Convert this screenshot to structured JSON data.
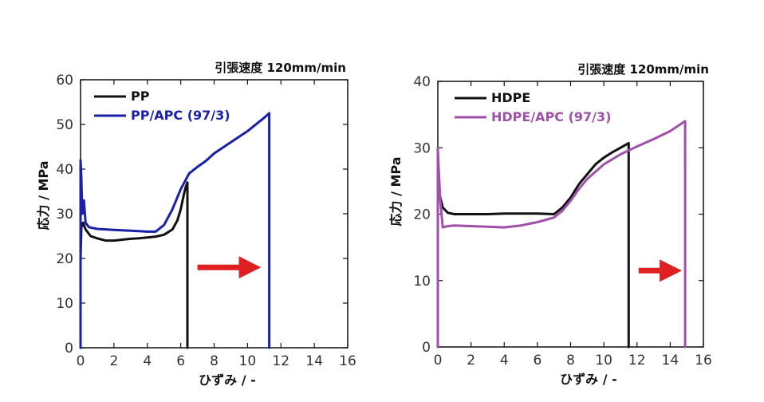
{
  "chart_data": [
    {
      "type": "line",
      "annotation": "引張速度 120mm/min",
      "xlabel": "ひずみ / -",
      "ylabel": "応力 / MPa",
      "xlim": [
        0,
        16
      ],
      "ylim": [
        0,
        60
      ],
      "xticks": [
        "0",
        "2",
        "4",
        "6",
        "8",
        "10",
        "12",
        "14",
        "16"
      ],
      "yticks": [
        "0",
        "10",
        "20",
        "30",
        "40",
        "50",
        "60"
      ],
      "legend_position": "top-left",
      "arrow": {
        "from": [
          7,
          18
        ],
        "to": [
          11,
          18
        ],
        "color": "#e02020"
      },
      "series": [
        {
          "name": "PP",
          "color": "#111111",
          "x": [
            0,
            0,
            0.05,
            0.15,
            0.3,
            0.6,
            1.0,
            1.5,
            2.0,
            2.5,
            3.0,
            3.5,
            4.0,
            4.5,
            5.0,
            5.5,
            5.8,
            6.0,
            6.2,
            6.3,
            6.4,
            6.4,
            6.4
          ],
          "y": [
            0,
            20,
            27,
            28,
            26.5,
            25,
            24.5,
            24,
            24,
            24.2,
            24.4,
            24.5,
            24.7,
            24.9,
            25.3,
            26.5,
            28.5,
            31,
            34.5,
            36,
            37,
            20,
            0
          ]
        },
        {
          "name": "PP/APC (97/3)",
          "color": "#1a1fa8",
          "x": [
            0,
            0,
            0.05,
            0.1,
            0.2,
            0.3,
            0.5,
            1.0,
            2.0,
            3.0,
            4.0,
            4.5,
            5.0,
            5.5,
            6.0,
            6.5,
            7.0,
            7.5,
            8.0,
            9.0,
            10.0,
            11.0,
            11.3,
            11.3,
            11.3
          ],
          "y": [
            0,
            42,
            38,
            30,
            33,
            28,
            27,
            26.6,
            26.4,
            26.2,
            26,
            26,
            27.5,
            31,
            35.5,
            39,
            40.5,
            41.8,
            43.5,
            46,
            48.5,
            51.5,
            52.5,
            25,
            0
          ]
        }
      ]
    },
    {
      "type": "line",
      "annotation": "引張速度 120mm/min",
      "xlabel": "ひずみ / -",
      "ylabel": "応力 / MPa",
      "xlim": [
        0,
        16
      ],
      "ylim": [
        0,
        40
      ],
      "xticks": [
        "0",
        "2",
        "4",
        "6",
        "8",
        "10",
        "12",
        "14",
        "16"
      ],
      "yticks": [
        "0",
        "10",
        "20",
        "30",
        "40"
      ],
      "legend_position": "top-left",
      "arrow": {
        "from": [
          12.1,
          11.5
        ],
        "to": [
          14.9,
          11.5
        ],
        "color": "#e02020"
      },
      "series": [
        {
          "name": "HDPE",
          "color": "#111111",
          "x": [
            0,
            0,
            0.1,
            0.3,
            0.6,
            1.0,
            2.0,
            3.0,
            4.0,
            5.0,
            6.0,
            7.0,
            7.5,
            8.0,
            8.5,
            9.0,
            9.5,
            10.0,
            10.5,
            11.0,
            11.5,
            11.5,
            11.5
          ],
          "y": [
            0,
            27,
            23,
            21,
            20.2,
            20,
            20,
            20,
            20.1,
            20.1,
            20.1,
            20,
            21,
            22.5,
            24.5,
            26,
            27.5,
            28.5,
            29.3,
            30,
            30.7,
            10,
            0
          ]
        },
        {
          "name": "HDPE/APC (97/3)",
          "color": "#a050a8",
          "x": [
            0,
            0,
            0.05,
            0.15,
            0.3,
            0.6,
            1.0,
            2.0,
            3.0,
            4.0,
            5.0,
            6.0,
            7.0,
            7.5,
            8.0,
            8.5,
            9.0,
            10.0,
            11.0,
            12.0,
            13.0,
            14.0,
            14.9,
            14.9,
            14.9
          ],
          "y": [
            0,
            30,
            27,
            22,
            18,
            18.2,
            18.3,
            18.2,
            18.1,
            18,
            18.3,
            18.8,
            19.5,
            20.5,
            22,
            23.8,
            25.3,
            27.5,
            29,
            30.2,
            31.3,
            32.5,
            34,
            17,
            0
          ]
        }
      ]
    }
  ]
}
